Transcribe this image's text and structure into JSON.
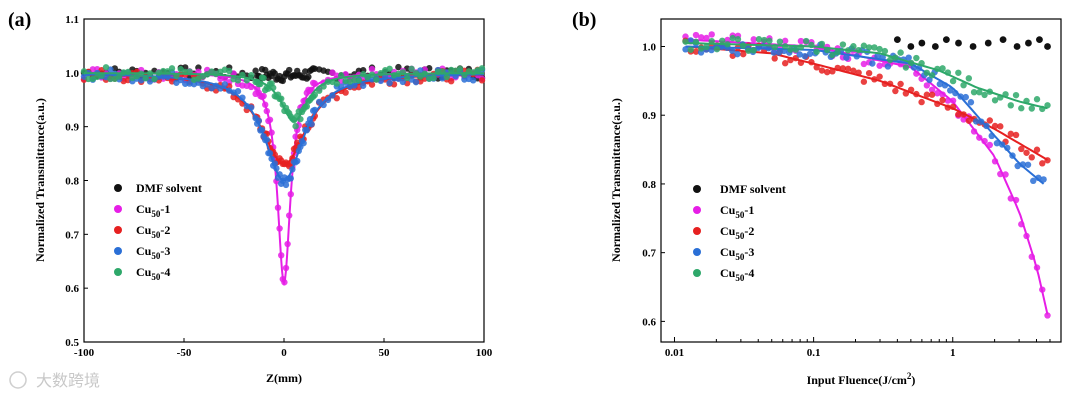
{
  "watermark": "大数跨境",
  "chart_data": [
    {
      "panel_label": "(a)",
      "type": "scatter",
      "xlabel": "Z(mm)",
      "ylabel": "Normalized Transmittance(a.u.)",
      "xlim": [
        -100,
        100
      ],
      "ylim": [
        0.5,
        1.1
      ],
      "xticks": [
        -100,
        -50,
        0,
        50,
        100
      ],
      "yticks": [
        0.5,
        0.6,
        0.7,
        0.8,
        0.9,
        1.0,
        1.1
      ],
      "xticklabels": [
        "-100",
        "-50",
        "0",
        "50",
        "100"
      ],
      "yticklabels": [
        "0.5",
        "0.6",
        "0.7",
        "0.8",
        "0.9",
        "1.0",
        "1.1"
      ],
      "legend_position": "left-middle",
      "series": [
        {
          "name": "DMF solvent",
          "legend_main": "DMF solvent",
          "legend_sub": "",
          "legend_suffix": "",
          "color": "#111111",
          "fit": false,
          "min_T": 0.995,
          "center": 0,
          "width": 12
        },
        {
          "name": "Cu50-1",
          "legend_main": "Cu",
          "legend_sub": "50",
          "legend_suffix": "-1",
          "color": "#e61ee6",
          "fit": true,
          "min_T": 0.61,
          "center": 0,
          "width": 4
        },
        {
          "name": "Cu50-2",
          "legend_main": "Cu",
          "legend_sub": "50",
          "legend_suffix": "-2",
          "color": "#e62020",
          "fit": true,
          "min_T": 0.83,
          "center": 0,
          "width": 14
        },
        {
          "name": "Cu50-3",
          "legend_main": "Cu",
          "legend_sub": "50",
          "legend_suffix": "-3",
          "color": "#2a6fd6",
          "fit": true,
          "min_T": 0.8,
          "center": 0,
          "width": 12
        },
        {
          "name": "Cu50-4",
          "legend_main": "Cu",
          "legend_sub": "50",
          "legend_suffix": "-4",
          "color": "#2ea86a",
          "fit": true,
          "min_T": 0.91,
          "center": 5,
          "width": 8
        }
      ]
    },
    {
      "panel_label": "(b)",
      "type": "scatter",
      "xscale": "log",
      "xlabel": "Input Fluence(J/cm",
      "xlabel_sup": "2",
      "xlabel_end": ")",
      "ylabel": "Normalized Transmittance(a.u.)",
      "xlim": [
        0.008,
        6
      ],
      "ylim": [
        0.57,
        1.04
      ],
      "xticks": [
        0.01,
        0.1,
        1
      ],
      "xticklabels": [
        "0.01",
        "0.1",
        "1"
      ],
      "yticks": [
        0.6,
        0.7,
        0.8,
        0.9,
        1.0
      ],
      "yticklabels": [
        "0.6",
        "0.7",
        "0.8",
        "0.9",
        "1.0"
      ],
      "legend_position": "left-middle",
      "series": [
        {
          "name": "DMF solvent",
          "legend_main": "DMF solvent",
          "legend_sub": "",
          "legend_suffix": "",
          "color": "#111111",
          "fit": false,
          "x_range": [
            0.4,
            4.8
          ],
          "points": [
            [
              0.4,
              1.01
            ],
            [
              0.5,
              1.0
            ],
            [
              0.6,
              1.005
            ],
            [
              0.75,
              1.0
            ],
            [
              0.9,
              1.01
            ],
            [
              1.1,
              1.005
            ],
            [
              1.4,
              1.0
            ],
            [
              1.8,
              1.005
            ],
            [
              2.3,
              1.01
            ],
            [
              2.9,
              1.0
            ],
            [
              3.5,
              1.005
            ],
            [
              4.2,
              1.01
            ],
            [
              4.8,
              1.0
            ]
          ]
        },
        {
          "name": "Cu50-1",
          "legend_main": "Cu",
          "legend_sub": "50",
          "legend_suffix": "-1",
          "color": "#e61ee6",
          "fit": true,
          "curve": [
            [
              0.012,
              1.01
            ],
            [
              0.1,
              1.0
            ],
            [
              0.5,
              0.97
            ],
            [
              1,
              0.92
            ],
            [
              2,
              0.84
            ],
            [
              3,
              0.76
            ],
            [
              4,
              0.68
            ],
            [
              4.8,
              0.61
            ]
          ]
        },
        {
          "name": "Cu50-2",
          "legend_main": "Cu",
          "legend_sub": "50",
          "legend_suffix": "-2",
          "color": "#e62020",
          "fit": true,
          "curve": [
            [
              0.012,
              1.0
            ],
            [
              0.05,
              0.99
            ],
            [
              0.1,
              0.975
            ],
            [
              0.3,
              0.95
            ],
            [
              1,
              0.91
            ],
            [
              2,
              0.88
            ],
            [
              4.8,
              0.835
            ]
          ]
        },
        {
          "name": "Cu50-3",
          "legend_main": "Cu",
          "legend_sub": "50",
          "legend_suffix": "-3",
          "color": "#2a6fd6",
          "fit": true,
          "curve": [
            [
              0.012,
              1.0
            ],
            [
              0.1,
              0.995
            ],
            [
              0.5,
              0.975
            ],
            [
              1,
              0.94
            ],
            [
              2,
              0.87
            ],
            [
              3,
              0.83
            ],
            [
              4.5,
              0.8
            ]
          ]
        },
        {
          "name": "Cu50-4",
          "legend_main": "Cu",
          "legend_sub": "50",
          "legend_suffix": "-4",
          "color": "#2ea86a",
          "fit": true,
          "curve": [
            [
              0.012,
              1.005
            ],
            [
              0.1,
              1.0
            ],
            [
              0.3,
              0.99
            ],
            [
              0.8,
              0.965
            ],
            [
              1.5,
              0.94
            ],
            [
              3,
              0.92
            ],
            [
              4.8,
              0.91
            ]
          ]
        }
      ]
    }
  ]
}
